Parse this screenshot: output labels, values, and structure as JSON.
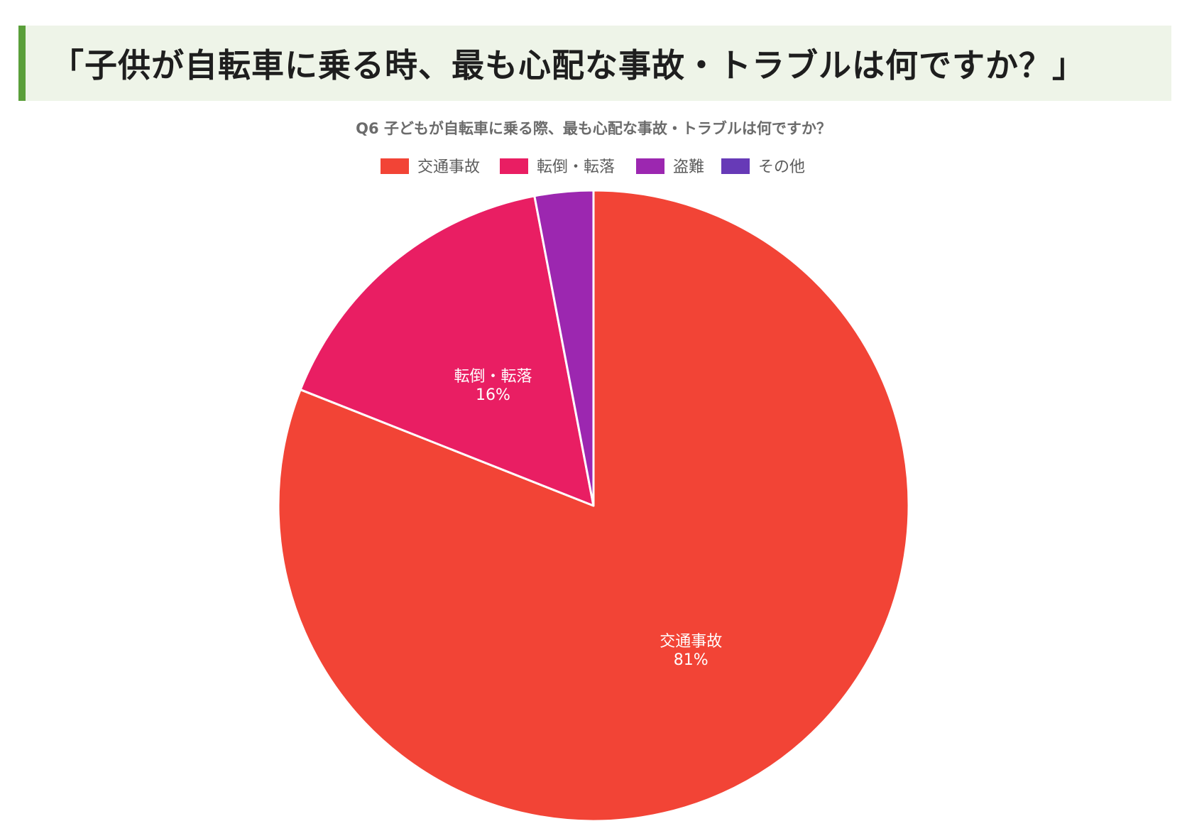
{
  "heading": "「子供が自転車に乗る時、最も心配な事故・トラブルは何ですか？」",
  "chart_data": {
    "type": "pie",
    "title": "Q6 子どもが自転車に乗る際、最も心配な事故・トラブルは何ですか？",
    "legend_position": "top",
    "categories": [
      "交通事故",
      "転倒・転落",
      "盗難",
      "その他"
    ],
    "values": [
      81,
      16,
      3,
      0
    ],
    "data_labels": [
      {
        "name": "交通事故",
        "value": "81%"
      },
      {
        "name": "転倒・転落",
        "value": "16%"
      }
    ],
    "colors": [
      "#f24436",
      "#e91e63",
      "#9c27b0",
      "#673ab7"
    ]
  }
}
